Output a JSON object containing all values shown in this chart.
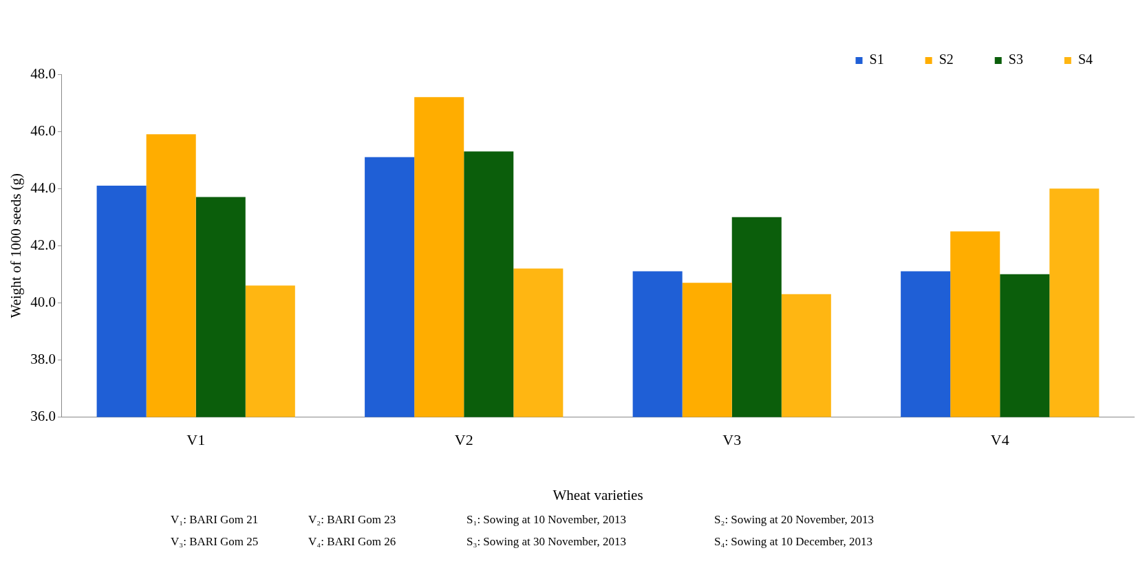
{
  "chart_data": {
    "type": "bar",
    "xlabel": "Wheat varieties",
    "ylabel": "Weight of 1000 seeds (g)",
    "categories": [
      "V1",
      "V2",
      "V3",
      "V4"
    ],
    "series": [
      {
        "name": "S1",
        "color": "#1f5fd6",
        "values": [
          44.1,
          45.1,
          41.1,
          41.1
        ]
      },
      {
        "name": "S2",
        "color": "#ffad00",
        "values": [
          45.9,
          47.2,
          40.7,
          42.5
        ]
      },
      {
        "name": "S3",
        "color": "#0b5e0b",
        "values": [
          43.7,
          45.3,
          43.0,
          41.0
        ]
      },
      {
        "name": "S4",
        "color": "#ffb612",
        "values": [
          40.6,
          41.2,
          40.3,
          44.0
        ]
      }
    ],
    "ylim": [
      36,
      48
    ],
    "yticks": [
      {
        "value": 36,
        "label": "36.0"
      },
      {
        "value": 38,
        "label": "38.0"
      },
      {
        "value": 40,
        "label": "40.0"
      },
      {
        "value": 42,
        "label": "42.0"
      },
      {
        "value": 44,
        "label": "44.0"
      },
      {
        "value": 46,
        "label": "46.0"
      },
      {
        "value": 48,
        "label": "48.0"
      }
    ],
    "grid": false,
    "legend": "top right",
    "annotations": [
      "V₁: BARI Gom 21",
      "V₂: BARI Gom 23",
      "S₁: Sowing at 10 November, 2013",
      "S₂: Sowing at 20 November, 2013",
      "V₃: BARI Gom 25",
      "V₄: BARI Gom 26",
      "S₃: Sowing at 30 November, 2013",
      "S₄: Sowing at 10 December, 2013"
    ]
  }
}
